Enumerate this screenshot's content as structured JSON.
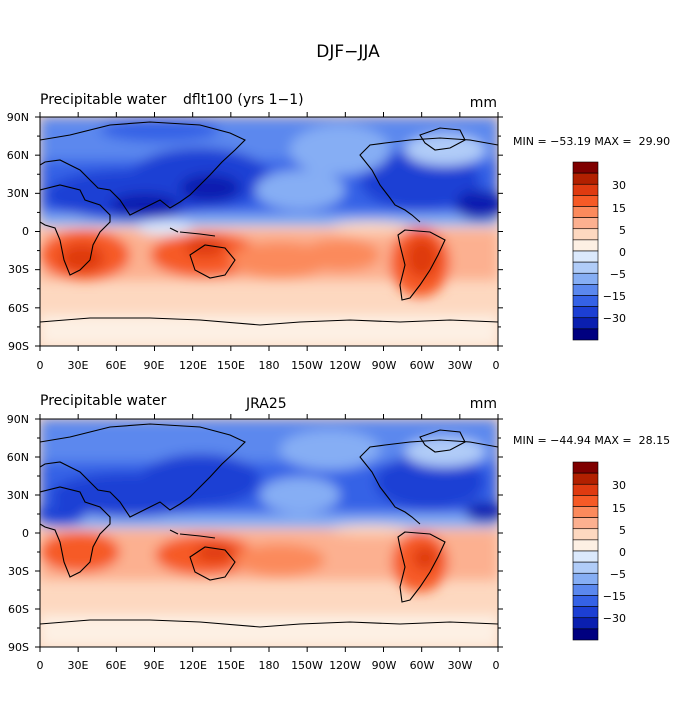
{
  "figure": {
    "title": "DJF−JJA"
  },
  "colorbar": {
    "levels": [
      {
        "color": "#7f0000"
      },
      {
        "color": "#b22000"
      },
      {
        "color": "#df3a10"
      },
      {
        "color": "#f65a26"
      },
      {
        "color": "#fb8a5c"
      },
      {
        "color": "#fcb090"
      },
      {
        "color": "#fdd8c0"
      },
      {
        "color": "#fdf0e4"
      },
      {
        "color": "#dbe9fc"
      },
      {
        "color": "#b0ccf8"
      },
      {
        "color": "#86aef4"
      },
      {
        "color": "#5b88ee"
      },
      {
        "color": "#3562e6"
      },
      {
        "color": "#1c3fd4"
      },
      {
        "color": "#0a1fb0"
      },
      {
        "color": "#000080"
      }
    ],
    "tick_labels": [
      "30",
      "15",
      "5",
      "0",
      "−5",
      "−15",
      "−30"
    ]
  },
  "chart_data": [
    {
      "type": "heatmap",
      "title": "Precipitable water",
      "subtitle": "dflt100 (yrs 1−1)",
      "units": "mm",
      "stats": "MIN = −53.19 MAX =  29.90",
      "x_tick_labels": [
        "0",
        "30E",
        "60E",
        "90E",
        "120E",
        "150E",
        "180",
        "150W",
        "120W",
        "90W",
        "60W",
        "30W",
        "0"
      ],
      "y_tick_labels": [
        "90N",
        "60N",
        "30N",
        "0",
        "30S",
        "60S",
        "90S"
      ],
      "xlim": [
        0,
        360
      ],
      "ylim": [
        -90,
        90
      ]
    },
    {
      "type": "heatmap",
      "title": "Precipitable water",
      "subtitle": "JRA25",
      "units": "mm",
      "stats": "MIN = −44.94 MAX =  28.15",
      "x_tick_labels": [
        "0",
        "30E",
        "60E",
        "90E",
        "120E",
        "150E",
        "180",
        "150W",
        "120W",
        "90W",
        "60W",
        "30W",
        "0"
      ],
      "y_tick_labels": [
        "90N",
        "60N",
        "30N",
        "0",
        "30S",
        "60S",
        "90S"
      ],
      "xlim": [
        0,
        360
      ],
      "ylim": [
        -90,
        90
      ]
    }
  ]
}
